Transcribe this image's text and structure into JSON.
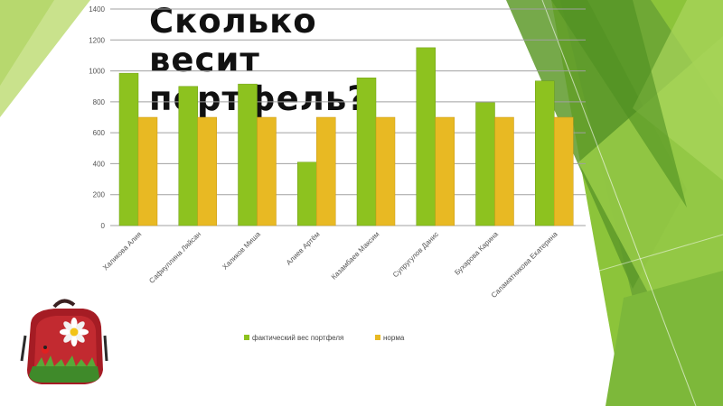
{
  "slide": {
    "title_lines": [
      "Сколько",
      "весит",
      "портфель?"
    ]
  },
  "colors": {
    "series_actual": "#8dc21f",
    "series_norm": "#e8b923",
    "grid": "#a0a0a0",
    "deco_green_light": "#c5e08a",
    "deco_green": "#8cc43a",
    "deco_green_dark": "#5e9a2a"
  },
  "decorations": [
    "backpack-image",
    "green-triangle-decoration"
  ],
  "chart_data": {
    "type": "bar",
    "categories": [
      "Халикова Алия",
      "Сафиуллина Ляйсан",
      "Халиков Миша",
      "Алиев Артём",
      "Казамбаев Максим",
      "Супругулов Данис",
      "Бухарова Карина",
      "Саламатникова Екатерина"
    ],
    "series": [
      {
        "name": "фактический вес портфеля",
        "values": [
          985,
          900,
          915,
          410,
          955,
          1150,
          795,
          935
        ]
      },
      {
        "name": "норма",
        "values": [
          700,
          700,
          700,
          700,
          700,
          700,
          700,
          700
        ]
      }
    ],
    "yticks": [
      "0",
      "200",
      "400",
      "600",
      "800",
      "1000",
      "1200",
      "1400"
    ],
    "ylim": [
      0,
      1400
    ],
    "grid": true,
    "legend": "bottom"
  }
}
